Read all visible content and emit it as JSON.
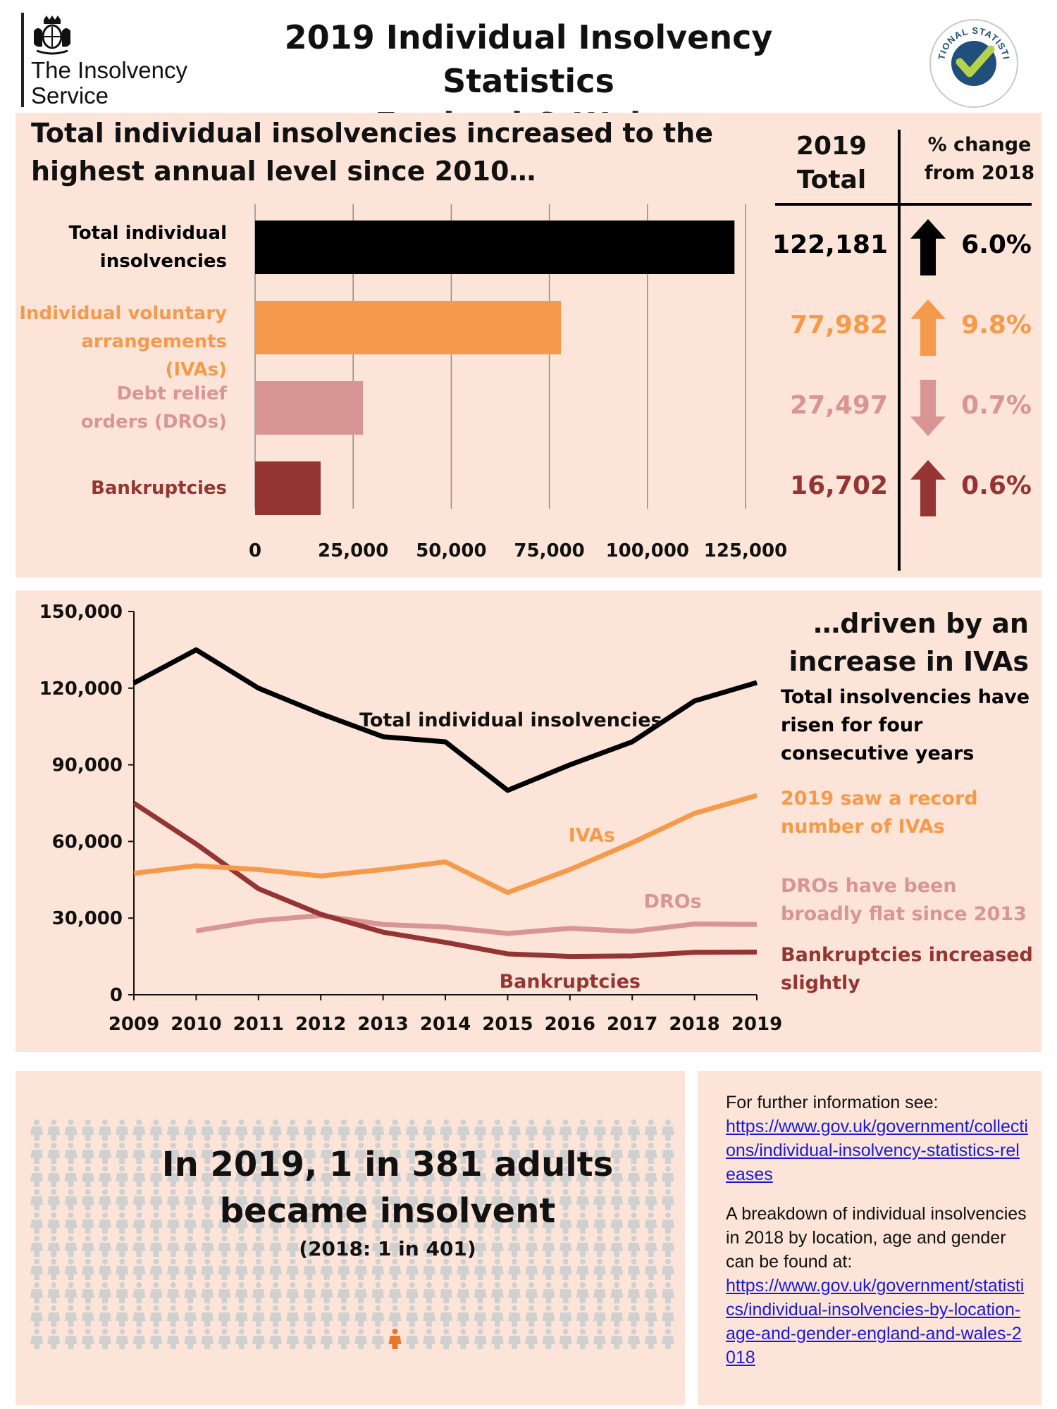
{
  "header": {
    "org_name": "The Insolvency Service",
    "title_line1": "2019 Individual Insolvency Statistics",
    "title_line2": "England & Wales",
    "badge_text": "NATIONAL STATISTICS"
  },
  "colors": {
    "total": "#000000",
    "iva": "#f59a4b",
    "dro": "#d99594",
    "bankruptcy": "#943534",
    "panel_bg": "#fce5d8",
    "link": "#1a1ad6"
  },
  "panel1": {
    "heading": "Total individual insolvencies increased to the highest annual level since 2010…",
    "col_total_header": "2019 Total",
    "col_change_header": "% change from 2018",
    "rows": [
      {
        "label_line1": "Total individual",
        "label_line2": "insolvencies",
        "total": "122,181",
        "change": "6.0%",
        "direction": "up"
      },
      {
        "label_line1": "Individual voluntary",
        "label_line2": "arrangements (IVAs)",
        "total": "77,982",
        "change": "9.8%",
        "direction": "up"
      },
      {
        "label_line1": "Debt relief",
        "label_line2": "orders (DROs)",
        "total": "27,497",
        "change": "0.7%",
        "direction": "down"
      },
      {
        "label_line1": "Bankruptcies",
        "label_line2": "",
        "total": "16,702",
        "change": "0.6%",
        "direction": "up"
      }
    ]
  },
  "panel2": {
    "heading_line1": "…driven by an",
    "heading_line2": "increase in IVAs",
    "notes": {
      "total": "Total insolvencies have risen for four consecutive years",
      "iva": "2019 saw a  record number of IVAs",
      "dro": "DROs have been broadly flat since 2013",
      "bankruptcy": "Bankruptcies increased slightly"
    }
  },
  "panel3": {
    "main_line1": "In 2019, 1 in 381 adults",
    "main_line2": "became insolvent",
    "sub": "(2018: 1 in 401)"
  },
  "panel4": {
    "intro": "For further information see:",
    "link1": "https://www.gov.uk/government/collections/individual-insolvency-statistics-releases",
    "breakdown": "A breakdown of individual insolvencies in 2018 by location, age and gender can be found at:",
    "link2": "https://www.gov.uk/government/statistics/individual-insolvencies-by-location-age-and-gender-england-and-wales-2018"
  },
  "chart_data": [
    {
      "type": "bar",
      "orientation": "horizontal",
      "title": "Total individual insolvencies increased to the highest annual level since 2010…",
      "categories": [
        "Total individual insolvencies",
        "Individual voluntary arrangements (IVAs)",
        "Debt relief orders (DROs)",
        "Bankruptcies"
      ],
      "values": [
        122181,
        77982,
        27497,
        16702
      ],
      "xlim": [
        0,
        125000
      ],
      "xticks": [
        0,
        25000,
        50000,
        75000,
        100000,
        125000
      ],
      "xtick_labels": [
        "0",
        "25,000",
        "50,000",
        "75,000",
        "100,000",
        "125,000"
      ],
      "grid": "vertical"
    },
    {
      "type": "line",
      "title": "…driven by an increase in IVAs",
      "x": [
        2009,
        2010,
        2011,
        2012,
        2013,
        2014,
        2015,
        2016,
        2017,
        2018,
        2019
      ],
      "ylim": [
        0,
        150000
      ],
      "yticks": [
        0,
        30000,
        60000,
        90000,
        120000,
        150000
      ],
      "ytick_labels": [
        "0",
        "30,000",
        "60,000",
        "90,000",
        "120,000",
        "150,000"
      ],
      "series": [
        {
          "name": "Total individual insolvencies",
          "key": "total",
          "values": [
            122000,
            135000,
            120000,
            110000,
            101000,
            99000,
            80000,
            90000,
            99000,
            115000,
            122181
          ]
        },
        {
          "name": "IVAs",
          "key": "iva",
          "values": [
            47500,
            50500,
            49000,
            46500,
            49000,
            52000,
            40000,
            49000,
            59500,
            71000,
            77982
          ]
        },
        {
          "name": "DROs",
          "key": "dro",
          "values": [
            null,
            25000,
            29000,
            31000,
            27500,
            26500,
            24000,
            26000,
            24800,
            27700,
            27497
          ]
        },
        {
          "name": "Bankruptcies",
          "key": "bankruptcy",
          "values": [
            75000,
            59000,
            41500,
            31500,
            24500,
            20500,
            16000,
            15000,
            15200,
            16600,
            16702
          ]
        }
      ]
    }
  ]
}
